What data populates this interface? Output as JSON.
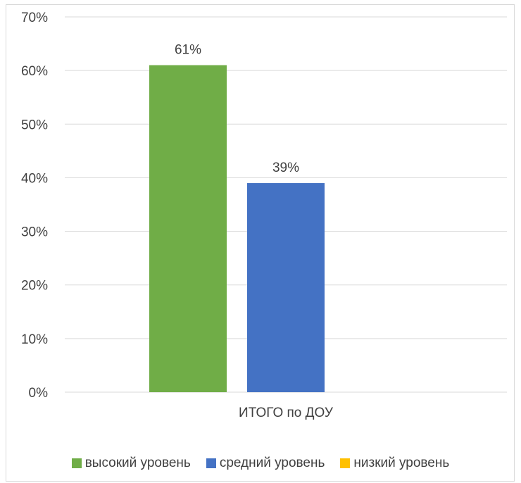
{
  "chart_data": {
    "type": "bar",
    "categories": [
      "ИТОГО по ДОУ"
    ],
    "series": [
      {
        "name": "высокий уровень",
        "values": [
          61
        ],
        "label": "61%",
        "color": "#70ad47"
      },
      {
        "name": "средний уровень",
        "values": [
          39
        ],
        "label": "39%",
        "color": "#4472c4"
      },
      {
        "name": "низкий уровень",
        "values": [
          0
        ],
        "label": "",
        "color": "#ffc000"
      }
    ],
    "ylim": [
      0,
      70
    ],
    "yticks": [
      "0%",
      "10%",
      "20%",
      "30%",
      "40%",
      "50%",
      "60%",
      "70%"
    ],
    "grid": true,
    "legend_position": "bottom"
  }
}
